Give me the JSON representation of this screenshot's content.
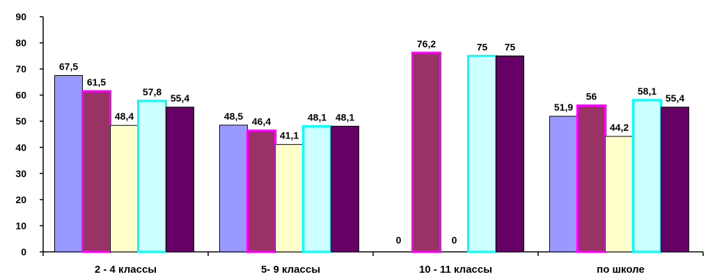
{
  "chart_data": {
    "type": "bar",
    "categories": [
      "2 - 4 классы",
      "5- 9 классы",
      "10 - 11 классы",
      "по школе"
    ],
    "series": [
      {
        "values": [
          67.5,
          48.5,
          0,
          51.9
        ],
        "color": "#9999ff",
        "border": "#000000"
      },
      {
        "values": [
          61.5,
          46.4,
          76.2,
          56
        ],
        "color": "#993366",
        "border": "#ff00ff"
      },
      {
        "values": [
          48.4,
          41.1,
          0,
          44.2
        ],
        "color": "#ffffcc",
        "border": "#000000"
      },
      {
        "values": [
          57.8,
          48.1,
          75,
          58.1
        ],
        "color": "#ccffff",
        "border": "#00ffff"
      },
      {
        "values": [
          55.4,
          48.1,
          75,
          55.4
        ],
        "color": "#660066",
        "border": "#000000"
      }
    ],
    "data_labels": [
      [
        "67,5",
        "48,5",
        "0",
        "51,9"
      ],
      [
        "61,5",
        "46,4",
        "76,2",
        "56"
      ],
      [
        "48,4",
        "41,1",
        "0",
        "44,2"
      ],
      [
        "57,8",
        "48,1",
        "75",
        "58,1"
      ],
      [
        "55,4",
        "48,1",
        "75",
        "55,4"
      ]
    ],
    "ylim": [
      0,
      90
    ],
    "yticks": [
      "0",
      "10",
      "20",
      "30",
      "40",
      "50",
      "60",
      "70",
      "80",
      "90"
    ],
    "title": "",
    "xlabel": "",
    "ylabel": "",
    "grid": false
  }
}
